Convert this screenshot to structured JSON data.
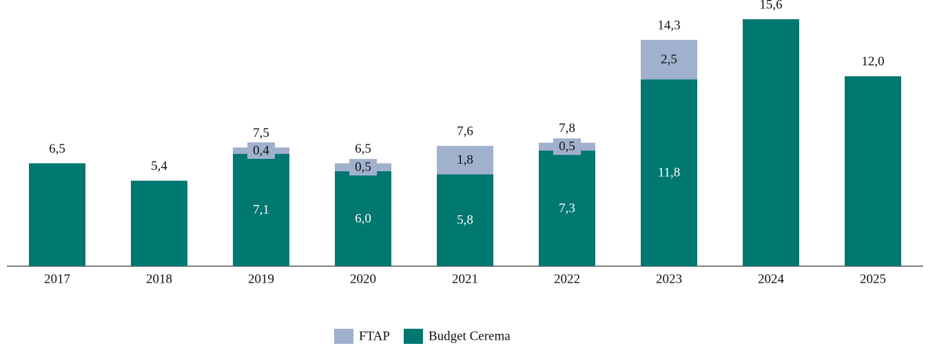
{
  "chart_data": {
    "type": "stacked-bar",
    "categories": [
      "2017",
      "2018",
      "2019",
      "2020",
      "2021",
      "2022",
      "2023",
      "2024",
      "2025"
    ],
    "series": [
      {
        "name": "Budget Cerema",
        "color": "#00776f",
        "values": [
          6.5,
          5.4,
          7.1,
          6.0,
          5.8,
          7.3,
          11.8,
          15.6,
          12.0
        ],
        "value_labels": [
          null,
          null,
          "7,1",
          "6,0",
          "5,8",
          "7,3",
          "11,8",
          null,
          null
        ]
      },
      {
        "name": "FTAP",
        "color": "#a0b1cd",
        "values": [
          null,
          null,
          0.4,
          0.5,
          1.8,
          0.5,
          2.5,
          null,
          null
        ],
        "value_labels": [
          null,
          null,
          "0,4",
          "0,5",
          "1,8",
          "0,5",
          "2,5",
          null,
          null
        ]
      }
    ],
    "totals": {
      "values": [
        6.5,
        5.4,
        7.5,
        6.5,
        7.6,
        7.8,
        14.3,
        15.6,
        12.0
      ],
      "value_labels": [
        "6,5",
        "5,4",
        "7,5",
        "6,5",
        "7,6",
        "7,8",
        "14,3",
        "15,6",
        "12,0"
      ]
    },
    "legend": "bottom"
  }
}
